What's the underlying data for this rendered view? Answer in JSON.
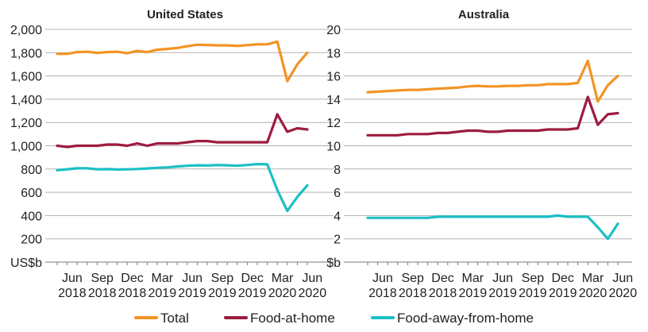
{
  "legend": {
    "items": [
      {
        "label": "Total",
        "color": "#F39325"
      },
      {
        "label": "Food-at-home",
        "color": "#9E1B40"
      },
      {
        "label": "Food-away-from-home",
        "color": "#1BBFC4"
      }
    ]
  },
  "chart_data": [
    {
      "type": "line",
      "title": "United States",
      "ylabel": "US$b",
      "ylim": [
        0,
        2000
      ],
      "ytick_values": [
        200,
        400,
        600,
        800,
        1000,
        1200,
        1400,
        1600,
        1800,
        2000
      ],
      "ytick_labels": [
        "200",
        "400",
        "600",
        "800",
        "1,000",
        "1,200",
        "1,400",
        "1,600",
        "1,800",
        "2,000"
      ],
      "x_ticks": [
        {
          "month": "Jun",
          "year": "2018"
        },
        {
          "month": "Sep",
          "year": "2018"
        },
        {
          "month": "Dec",
          "year": "2018"
        },
        {
          "month": "Mar",
          "year": "2019"
        },
        {
          "month": "Jun",
          "year": "2019"
        },
        {
          "month": "Sep",
          "year": "2019"
        },
        {
          "month": "Dec",
          "year": "2019"
        },
        {
          "month": "Mar",
          "year": "2020"
        },
        {
          "month": "Jun",
          "year": "2020"
        }
      ],
      "x_start": "Apr 2018",
      "x_end": "Jun 2020",
      "grid": true,
      "series": [
        {
          "name": "Total",
          "color": "#F39325",
          "values": [
            1790,
            1790,
            1805,
            1808,
            1798,
            1805,
            1808,
            1795,
            1815,
            1805,
            1825,
            1832,
            1840,
            1855,
            1868,
            1866,
            1863,
            1863,
            1858,
            1865,
            1872,
            1872,
            1895,
            1555,
            1700,
            1800
          ]
        },
        {
          "name": "Food-at-home",
          "color": "#9E1B40",
          "values": [
            1000,
            990,
            1000,
            1000,
            1000,
            1010,
            1010,
            1000,
            1020,
            1000,
            1020,
            1020,
            1020,
            1030,
            1040,
            1040,
            1030,
            1030,
            1030,
            1030,
            1030,
            1030,
            1270,
            1120,
            1150,
            1140
          ]
        },
        {
          "name": "Food-away-from-home",
          "color": "#1BBFC4",
          "values": [
            790,
            798,
            806,
            806,
            797,
            799,
            796,
            797,
            800,
            805,
            810,
            814,
            822,
            828,
            832,
            830,
            834,
            832,
            828,
            835,
            842,
            840,
            620,
            440,
            560,
            660
          ]
        }
      ]
    },
    {
      "type": "line",
      "title": "Australia",
      "ylabel": "$b",
      "ylim": [
        0,
        20
      ],
      "ytick_values": [
        2,
        4,
        6,
        8,
        10,
        12,
        14,
        16,
        18,
        20
      ],
      "ytick_labels": [
        "2",
        "4",
        "6",
        "8",
        "10",
        "12",
        "14",
        "16",
        "18",
        "20"
      ],
      "x_ticks": [
        {
          "month": "Jun",
          "year": "2018"
        },
        {
          "month": "Sep",
          "year": "2018"
        },
        {
          "month": "Dec",
          "year": "2018"
        },
        {
          "month": "Mar",
          "year": "2019"
        },
        {
          "month": "Jun",
          "year": "2019"
        },
        {
          "month": "Sep",
          "year": "2019"
        },
        {
          "month": "Dec",
          "year": "2019"
        },
        {
          "month": "Mar",
          "year": "2020"
        },
        {
          "month": "Jun",
          "year": "2020"
        }
      ],
      "x_start": "Apr 2018",
      "x_end": "Jun 2020",
      "grid": true,
      "series": [
        {
          "name": "Total",
          "color": "#F39325",
          "values": [
            14.6,
            14.65,
            14.7,
            14.75,
            14.8,
            14.8,
            14.85,
            14.9,
            14.95,
            15.0,
            15.1,
            15.15,
            15.1,
            15.1,
            15.15,
            15.15,
            15.2,
            15.2,
            15.3,
            15.3,
            15.3,
            15.4,
            17.3,
            13.8,
            15.2,
            16.0
          ]
        },
        {
          "name": "Food-at-home",
          "color": "#9E1B40",
          "values": [
            10.9,
            10.9,
            10.9,
            10.9,
            11.0,
            11.0,
            11.0,
            11.1,
            11.1,
            11.2,
            11.3,
            11.3,
            11.2,
            11.2,
            11.3,
            11.3,
            11.3,
            11.3,
            11.4,
            11.4,
            11.4,
            11.5,
            14.2,
            11.8,
            12.7,
            12.8
          ]
        },
        {
          "name": "Food-away-from-home",
          "color": "#1BBFC4",
          "values": [
            3.8,
            3.8,
            3.8,
            3.8,
            3.8,
            3.8,
            3.8,
            3.9,
            3.9,
            3.9,
            3.9,
            3.9,
            3.9,
            3.9,
            3.9,
            3.9,
            3.9,
            3.9,
            3.9,
            4.0,
            3.9,
            3.9,
            3.9,
            3.0,
            2.0,
            3.3
          ]
        }
      ]
    }
  ]
}
